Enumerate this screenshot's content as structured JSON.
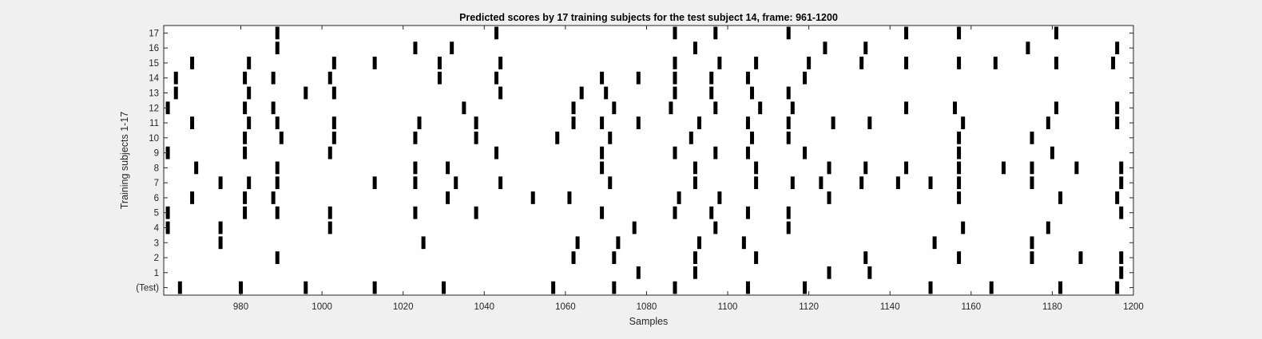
{
  "chart_data": {
    "type": "scatter",
    "title": "Predicted scores by 17 training subjects for the test subject 14, frame: 961-1200",
    "xlabel": "Samples",
    "ylabel": "Training subjects 1-17",
    "xlim": [
      961,
      1200
    ],
    "x_ticks": [
      980,
      1000,
      1020,
      1040,
      1060,
      1080,
      1100,
      1120,
      1140,
      1160,
      1180,
      1200
    ],
    "y_ticks": [
      "(Test)",
      "1",
      "2",
      "3",
      "4",
      "5",
      "6",
      "7",
      "8",
      "9",
      "10",
      "11",
      "12",
      "13",
      "14",
      "15",
      "16",
      "17"
    ],
    "grid": false,
    "legend": "none",
    "series": [
      {
        "row": "(Test)",
        "x": [
          965,
          980,
          996,
          1013,
          1030,
          1057,
          1072,
          1087,
          1105,
          1119,
          1150,
          1165,
          1182,
          1196
        ]
      },
      {
        "row": "1",
        "x": [
          1078,
          1092,
          1125,
          1135,
          1197
        ]
      },
      {
        "row": "2",
        "x": [
          989,
          1062,
          1072,
          1092,
          1107,
          1134,
          1157,
          1175,
          1187,
          1197
        ]
      },
      {
        "row": "3",
        "x": [
          975,
          1025,
          1063,
          1073,
          1093,
          1104,
          1151,
          1175
        ]
      },
      {
        "row": "4",
        "x": [
          962,
          975,
          1002,
          1077,
          1097,
          1115,
          1158,
          1179
        ]
      },
      {
        "row": "5",
        "x": [
          962,
          981,
          989,
          1002,
          1023,
          1038,
          1069,
          1087,
          1096,
          1105,
          1115,
          1197
        ]
      },
      {
        "row": "6",
        "x": [
          968,
          981,
          988,
          1031,
          1052,
          1061,
          1088,
          1098,
          1125,
          1157,
          1182,
          1196
        ]
      },
      {
        "row": "7",
        "x": [
          975,
          982,
          989,
          1013,
          1023,
          1033,
          1044,
          1071,
          1092,
          1107,
          1116,
          1123,
          1133,
          1142,
          1150,
          1157,
          1175,
          1197
        ]
      },
      {
        "row": "8",
        "x": [
          969,
          989,
          1023,
          1031,
          1069,
          1092,
          1107,
          1125,
          1134,
          1144,
          1157,
          1168,
          1175,
          1186,
          1197
        ]
      },
      {
        "row": "9",
        "x": [
          962,
          981,
          1002,
          1043,
          1069,
          1087,
          1097,
          1105,
          1119,
          1157,
          1180
        ]
      },
      {
        "row": "10",
        "x": [
          981,
          990,
          1003,
          1023,
          1038,
          1058,
          1071,
          1091,
          1106,
          1115,
          1157,
          1175
        ]
      },
      {
        "row": "11",
        "x": [
          968,
          982,
          989,
          1003,
          1024,
          1038,
          1062,
          1069,
          1078,
          1093,
          1105,
          1115,
          1126,
          1135,
          1158,
          1179,
          1196
        ]
      },
      {
        "row": "12",
        "x": [
          962,
          981,
          988,
          1035,
          1062,
          1072,
          1086,
          1097,
          1108,
          1116,
          1144,
          1156,
          1181,
          1196
        ]
      },
      {
        "row": "13",
        "x": [
          964,
          982,
          996,
          1003,
          1044,
          1064,
          1070,
          1087,
          1096,
          1106,
          1115
        ]
      },
      {
        "row": "14",
        "x": [
          964,
          981,
          988,
          1002,
          1029,
          1043,
          1069,
          1078,
          1087,
          1096,
          1105,
          1119
        ]
      },
      {
        "row": "15",
        "x": [
          968,
          982,
          1003,
          1013,
          1029,
          1044,
          1087,
          1098,
          1107,
          1120,
          1133,
          1144,
          1157,
          1166,
          1181,
          1195
        ]
      },
      {
        "row": "16",
        "x": [
          989,
          1023,
          1032,
          1092,
          1124,
          1134,
          1174,
          1196
        ]
      },
      {
        "row": "17",
        "x": [
          989,
          1043,
          1087,
          1097,
          1115,
          1144,
          1157,
          1181
        ]
      }
    ]
  }
}
